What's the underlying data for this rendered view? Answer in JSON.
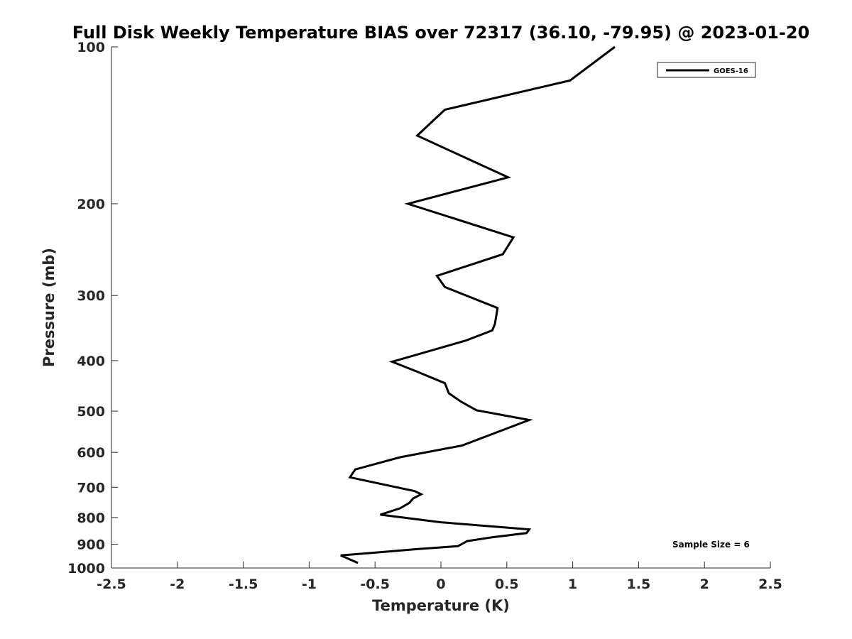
{
  "chart_data": {
    "type": "line",
    "title": "Full Disk Weekly Temperature BIAS over 72317 (36.10, -79.95) @ 2023-01-20",
    "xlabel": "Temperature (K)",
    "ylabel": "Pressure (mb)",
    "xlim": [
      -2.5,
      2.5
    ],
    "ylim": [
      1000,
      100
    ],
    "yscale": "log",
    "y_reversed": true,
    "xticks": [
      -2.5,
      -2,
      -1.5,
      -1,
      -0.5,
      0,
      0.5,
      1,
      1.5,
      2,
      2.5
    ],
    "xtick_labels": [
      "-2.5",
      "-2",
      "-1.5",
      "-1",
      "-0.5",
      "0",
      "0.5",
      "1",
      "1.5",
      "2",
      "2.5"
    ],
    "yticks": [
      100,
      200,
      300,
      400,
      500,
      600,
      700,
      800,
      900,
      1000
    ],
    "ytick_labels": [
      "100",
      "200",
      "300",
      "400",
      "500",
      "600",
      "700",
      "800",
      "900",
      "1000"
    ],
    "grid": false,
    "legend_position": "top-right",
    "annotation": "Sample Size = 6",
    "series": [
      {
        "name": "GOES-16",
        "color": "#000000",
        "x": [
          1.32,
          0.98,
          0.03,
          -0.18,
          0.51,
          -0.25,
          0.55,
          0.47,
          -0.03,
          0.03,
          0.43,
          0.41,
          0.39,
          0.19,
          -0.37,
          -0.18,
          0.03,
          0.06,
          0.15,
          0.27,
          0.67,
          0.16,
          -0.31,
          -0.65,
          -0.69,
          -0.2,
          -0.15,
          -0.21,
          -0.24,
          -0.31,
          -0.46,
          0.0,
          0.67,
          0.65,
          0.39,
          0.2,
          0.13,
          -0.18,
          -0.76,
          -0.63
        ],
        "y": [
          100,
          116,
          132,
          148,
          178,
          200,
          232,
          250,
          275,
          289,
          317,
          340,
          350,
          366,
          402,
          420,
          442,
          462,
          479,
          498,
          520,
          582,
          613,
          647,
          670,
          712,
          722,
          735,
          750,
          768,
          790,
          817,
          843,
          857,
          873,
          888,
          908,
          920,
          946,
          978
        ]
      }
    ]
  }
}
